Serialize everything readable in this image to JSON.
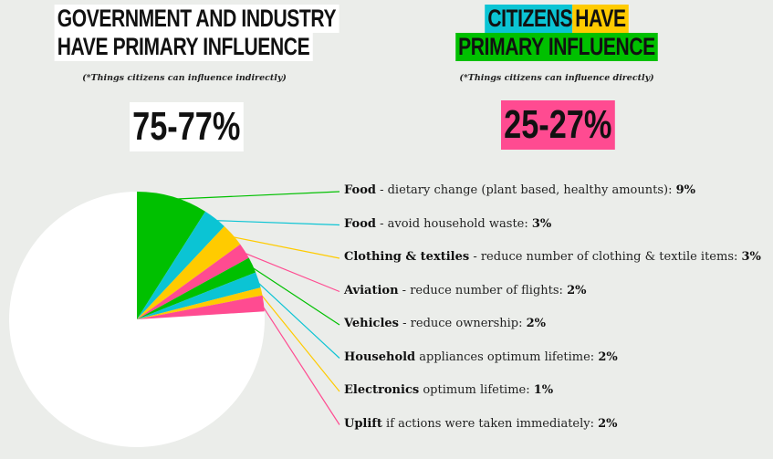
{
  "left": {
    "line1": "GOVERNMENT AND INDUSTRY",
    "line2": "HAVE PRIMARY INFLUENCE",
    "note": "(*Things citizens can influence indirectly)",
    "range": "75-77%"
  },
  "right": {
    "line1a": "CITIZENS",
    "line1b": "HAVE",
    "line2": "PRIMARY INFLUENCE",
    "note": "(*Things citizens can influence directly)",
    "range": "25-27%"
  },
  "colors": {
    "green": "#00c000",
    "cyan": "#0bc4d4",
    "yellow": "#ffcb00",
    "pink": "#ff4b91",
    "white": "#ffffff"
  },
  "chart_data": {
    "type": "pie",
    "slices": [
      {
        "bold": "Food",
        "rest": " - dietary change (plant based, healthy amounts): ",
        "value": 9,
        "value_label": "9%",
        "color": "#00c000"
      },
      {
        "bold": "Food",
        "rest": " - avoid household waste: ",
        "value": 3,
        "value_label": "3%",
        "color": "#0bc4d4"
      },
      {
        "bold": "Clothing & textiles",
        "rest": " - reduce number of clothing & textile items: ",
        "value": 3,
        "value_label": "3%",
        "color": "#ffcb00"
      },
      {
        "bold": "Aviation",
        "rest": " - reduce number of flights: ",
        "value": 2,
        "value_label": "2%",
        "color": "#ff4b91"
      },
      {
        "bold": "Vehicles",
        "rest": " - reduce ownership: ",
        "value": 2,
        "value_label": "2%",
        "color": "#00c000"
      },
      {
        "bold": "Household",
        "rest": " appliances optimum lifetime: ",
        "value": 2,
        "value_label": "2%",
        "color": "#0bc4d4"
      },
      {
        "bold": "Electronics",
        "rest": " optimum lifetime: ",
        "value": 1,
        "value_label": "1%",
        "color": "#ffcb00"
      },
      {
        "bold": "Uplift",
        "rest": " if actions were taken immediately: ",
        "value": 2,
        "value_label": "2%",
        "color": "#ff4b91"
      }
    ],
    "remainder": {
      "value": 76,
      "color": "#ffffff"
    }
  }
}
